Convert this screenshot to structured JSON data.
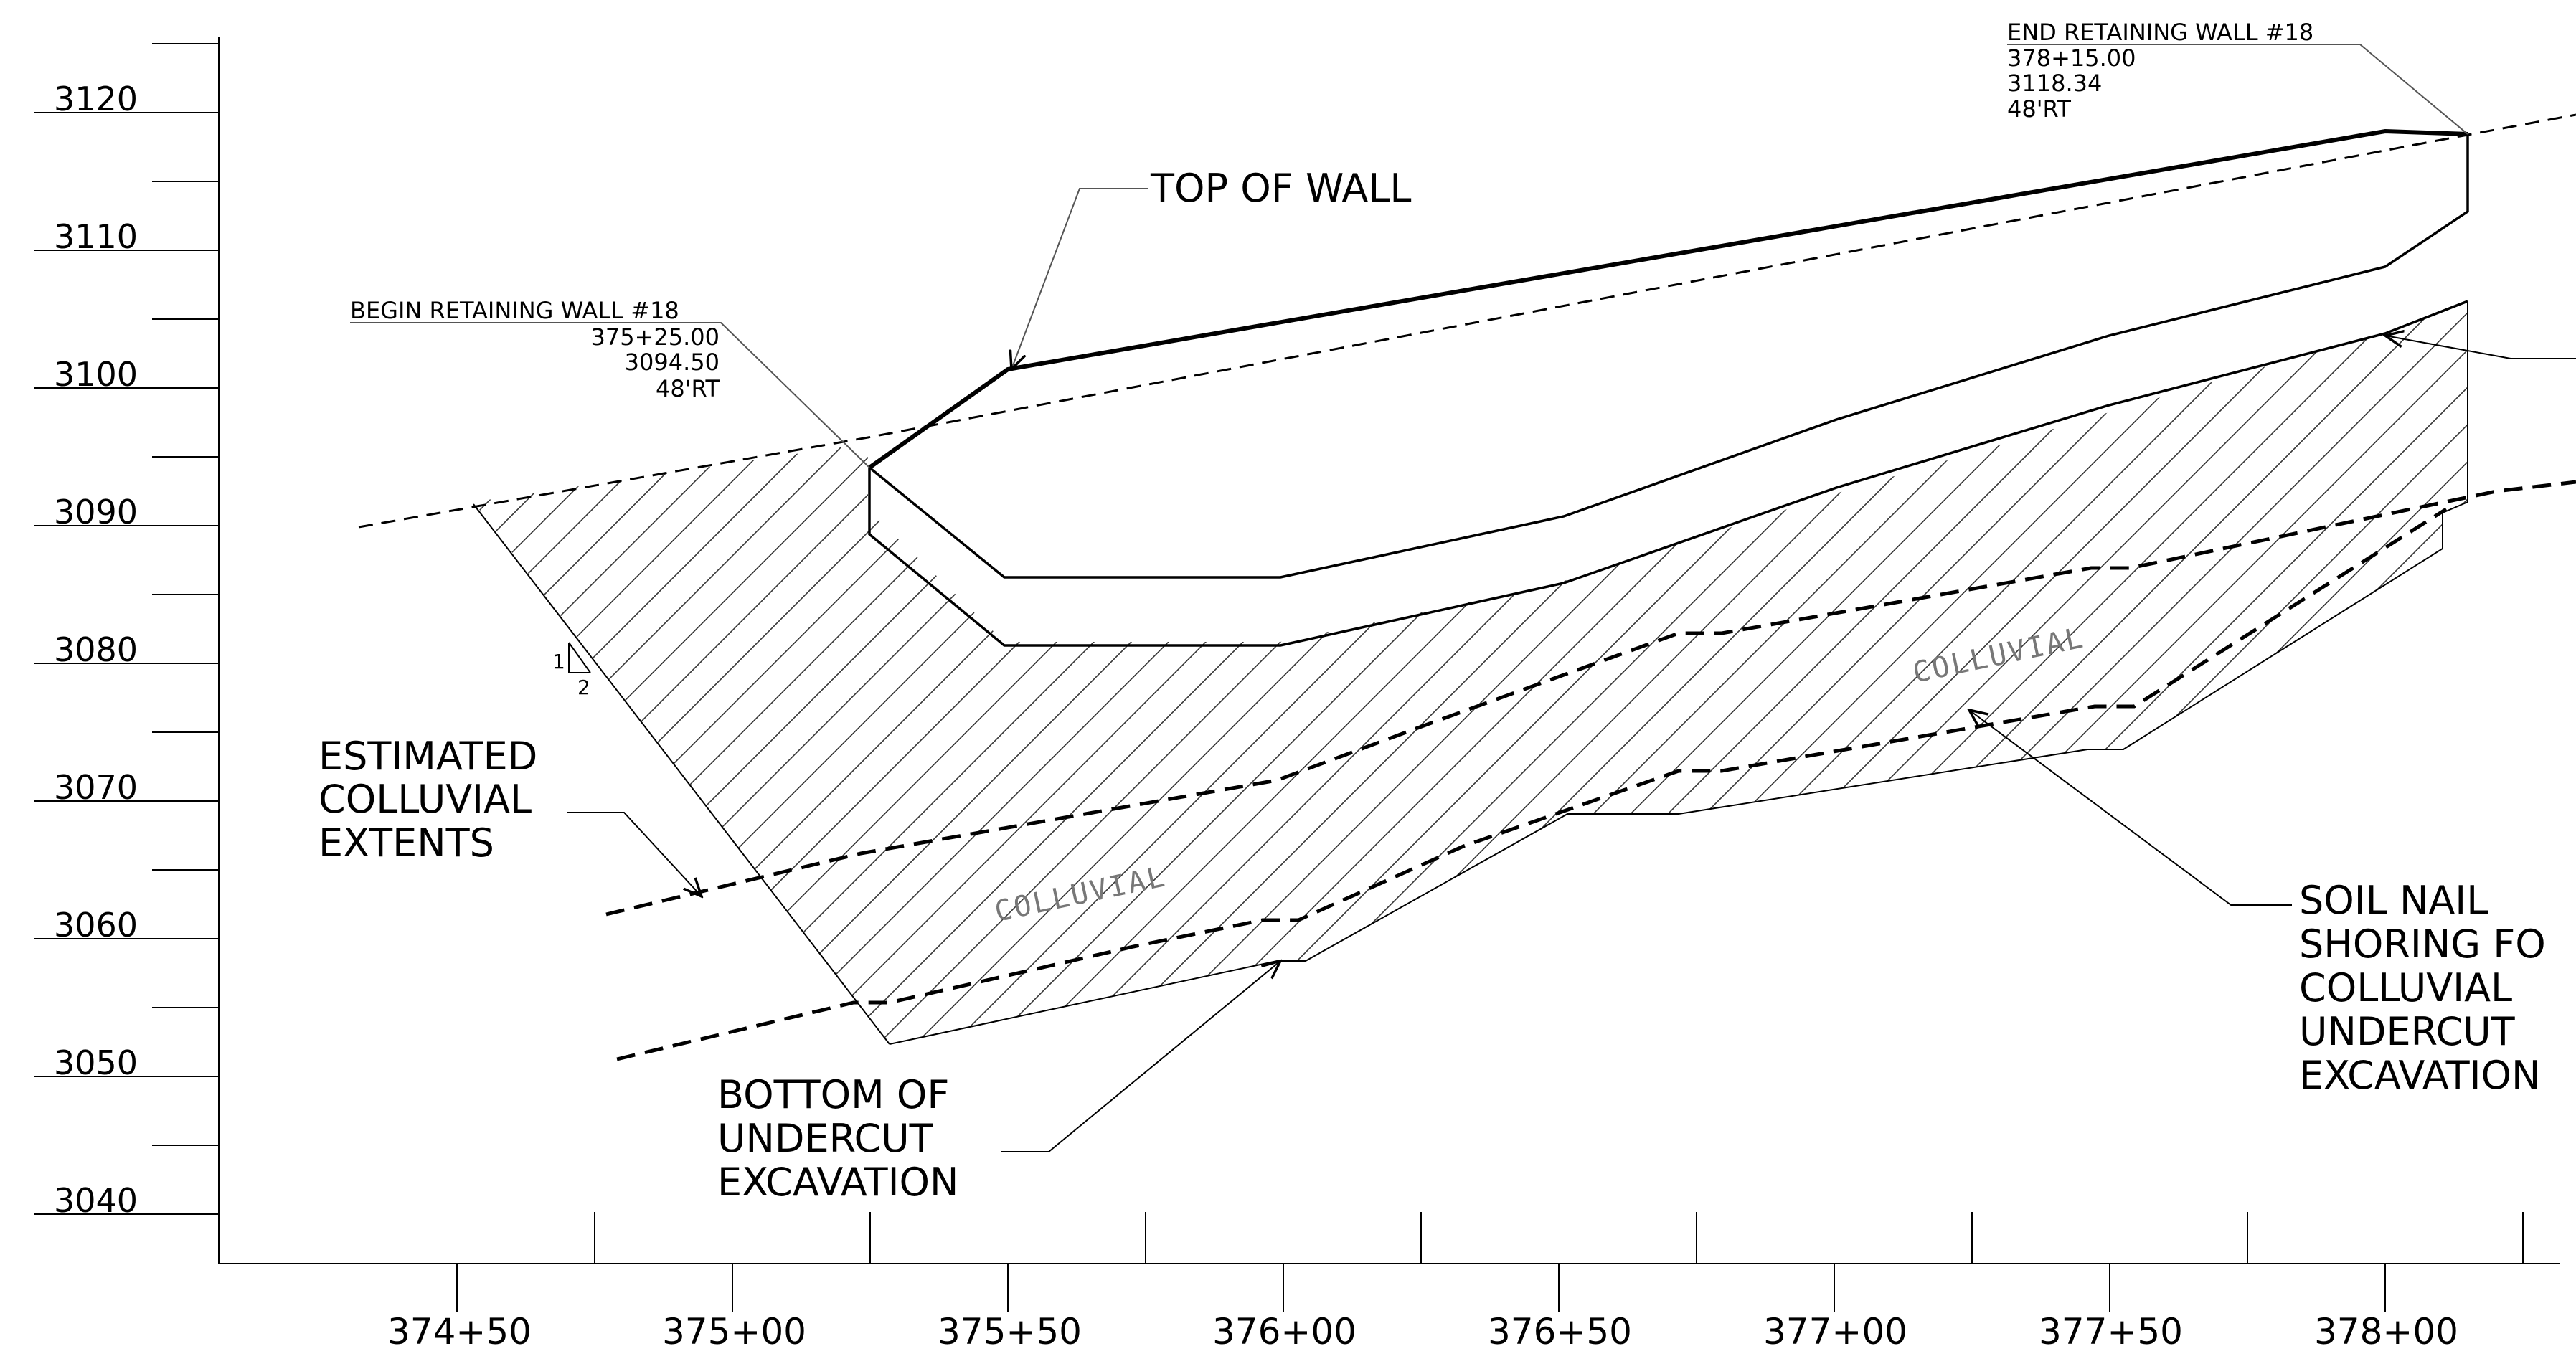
{
  "axes": {
    "elevation_labels": [
      "3120",
      "3110",
      "3100",
      "3090",
      "3080",
      "3070",
      "3060",
      "3050",
      "3040"
    ],
    "station_labels": [
      "374+50",
      "375+00",
      "375+50",
      "376+00",
      "376+50",
      "377+00",
      "377+50",
      "378+00"
    ]
  },
  "begin_wall": {
    "title": "BEGIN RETAINING WALL #18",
    "station": "375+25.00",
    "elevation": "3094.50",
    "offset": "48'RT"
  },
  "end_wall": {
    "title": "END RETAINING WALL #18",
    "station": "378+15.00",
    "elevation": "3118.34",
    "offset": "48'RT"
  },
  "labels": {
    "top_of_wall": "TOP OF WALL",
    "estimated_colluvial": [
      "ESTIMATED",
      "COLLUVIAL",
      "EXTENTS"
    ],
    "bottom_undercut": [
      "BOTTOM OF",
      "UNDERCUT",
      "EXCAVATION"
    ],
    "soil_nail": [
      "SOIL NAIL",
      "SHORING FO",
      "COLLUVIAL",
      "UNDERCUT",
      "EXCAVATION"
    ],
    "colluvial_left": "COLLUVIAL",
    "colluvial_right": "COLLUVIAL",
    "slope_rise": "1",
    "slope_run": "2"
  }
}
